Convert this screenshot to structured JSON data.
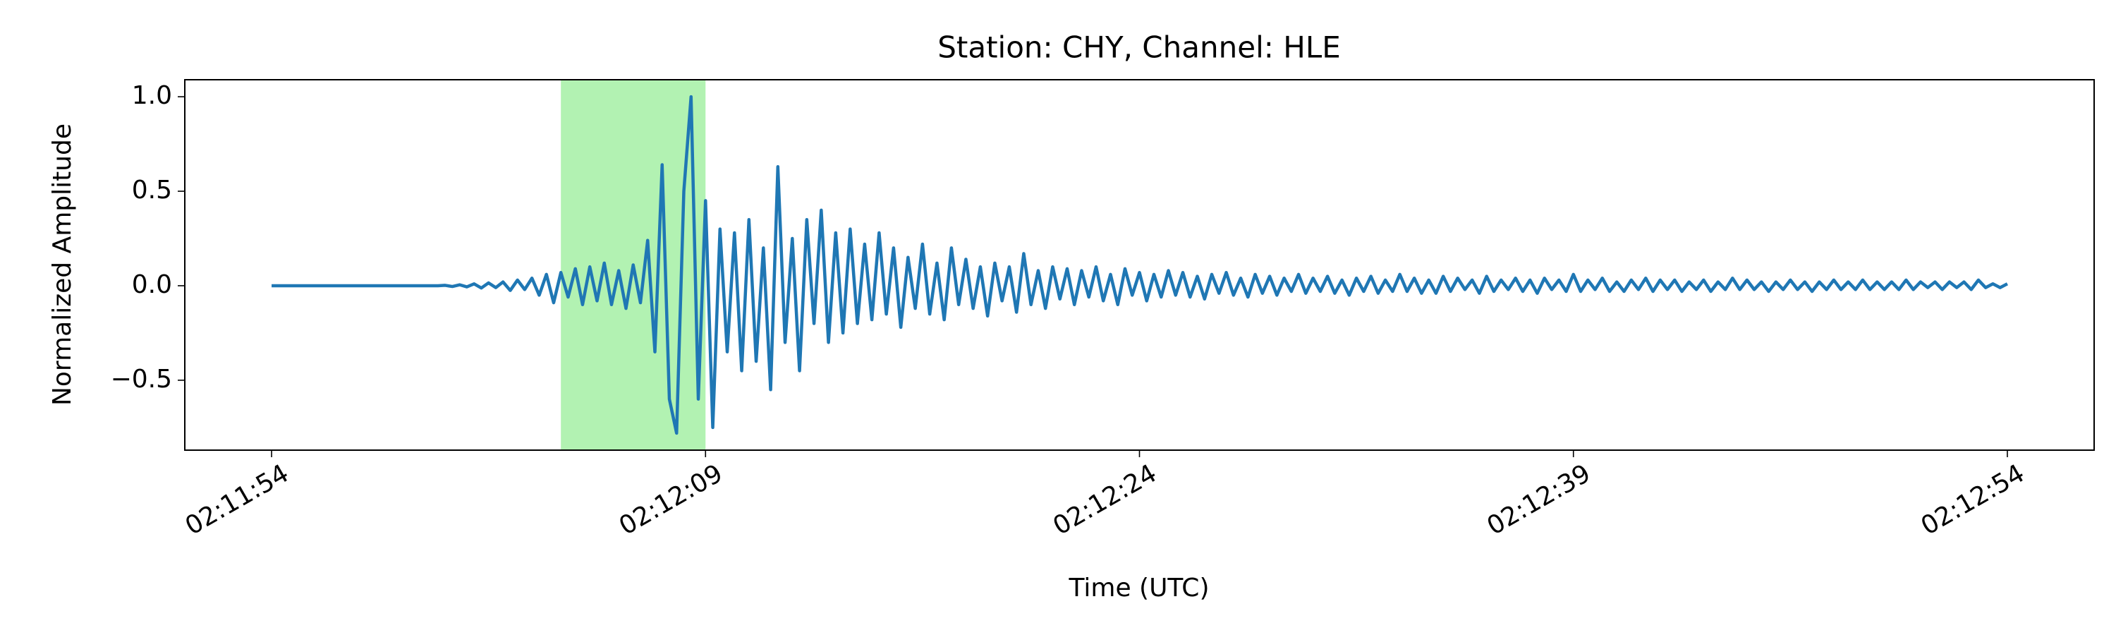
{
  "chart_data": {
    "type": "line",
    "title": "Station: CHY, Channel: HLE",
    "xlabel": "Time (UTC)",
    "ylabel": "Normalized Amplitude",
    "color": "#1f77b4",
    "grid": false,
    "highlight": [
      7924,
      7929
    ],
    "highlight_color": "#b2f2b2",
    "xlim": [
      7911,
      7977
    ],
    "ylim": [
      -0.87,
      1.09
    ],
    "xticks": [
      {
        "value": 7914,
        "label": "02:11:54"
      },
      {
        "value": 7929,
        "label": "02:12:09"
      },
      {
        "value": 7944,
        "label": "02:12:24"
      },
      {
        "value": 7959,
        "label": "02:12:39"
      },
      {
        "value": 7974,
        "label": "02:12:54"
      }
    ],
    "yticks": [
      {
        "value": -0.5,
        "label": "−0.5"
      },
      {
        "value": 0,
        "label": "0.0"
      },
      0.5,
      {
        "value": 1,
        "label": "1.0"
      }
    ],
    "x": [
      7914,
      7914.25,
      7914.5,
      7914.75,
      7915,
      7915.25,
      7915.5,
      7915.75,
      7916,
      7916.25,
      7916.5,
      7916.75,
      7917,
      7917.25,
      7917.5,
      7917.75,
      7918,
      7918.25,
      7918.5,
      7918.75,
      7919,
      7919.25,
      7919.5,
      7919.75,
      7920,
      7920.25,
      7920.5,
      7920.75,
      7921,
      7921.25,
      7921.5,
      7921.75,
      7922,
      7922.25,
      7922.5,
      7922.75,
      7923,
      7923.25,
      7923.5,
      7923.75,
      7924,
      7924.25,
      7924.5,
      7924.75,
      7925,
      7925.25,
      7925.5,
      7925.75,
      7926,
      7926.25,
      7926.5,
      7926.75,
      7927,
      7927.25,
      7927.5,
      7927.75,
      7928,
      7928.25,
      7928.5,
      7928.75,
      7929,
      7929.25,
      7929.5,
      7929.75,
      7930,
      7930.25,
      7930.5,
      7930.75,
      7931,
      7931.25,
      7931.5,
      7931.75,
      7932,
      7932.25,
      7932.5,
      7932.75,
      7933,
      7933.25,
      7933.5,
      7933.75,
      7934,
      7934.25,
      7934.5,
      7934.75,
      7935,
      7935.25,
      7935.5,
      7935.75,
      7936,
      7936.25,
      7936.5,
      7936.75,
      7937,
      7937.25,
      7937.5,
      7937.75,
      7938,
      7938.25,
      7938.5,
      7938.75,
      7939,
      7939.25,
      7939.5,
      7939.75,
      7940,
      7940.25,
      7940.5,
      7940.75,
      7941,
      7941.25,
      7941.5,
      7941.75,
      7942,
      7942.25,
      7942.5,
      7942.75,
      7943,
      7943.25,
      7943.5,
      7943.75,
      7944,
      7944.25,
      7944.5,
      7944.75,
      7945,
      7945.25,
      7945.5,
      7945.75,
      7946,
      7946.25,
      7946.5,
      7946.75,
      7947,
      7947.25,
      7947.5,
      7947.75,
      7948,
      7948.25,
      7948.5,
      7948.75,
      7949,
      7949.25,
      7949.5,
      7949.75,
      7950,
      7950.25,
      7950.5,
      7950.75,
      7951,
      7951.25,
      7951.5,
      7951.75,
      7952,
      7952.25,
      7952.5,
      7952.75,
      7953,
      7953.25,
      7953.5,
      7953.75,
      7954,
      7954.25,
      7954.5,
      7954.75,
      7955,
      7955.25,
      7955.5,
      7955.75,
      7956,
      7956.25,
      7956.5,
      7956.75,
      7957,
      7957.25,
      7957.5,
      7957.75,
      7958,
      7958.25,
      7958.5,
      7958.75,
      7959,
      7959.25,
      7959.5,
      7959.75,
      7960,
      7960.25,
      7960.5,
      7960.75,
      7961,
      7961.25,
      7961.5,
      7961.75,
      7962,
      7962.25,
      7962.5,
      7962.75,
      7963,
      7963.25,
      7963.5,
      7963.75,
      7964,
      7964.25,
      7964.5,
      7964.75,
      7965,
      7965.25,
      7965.5,
      7965.75,
      7966,
      7966.25,
      7966.5,
      7966.75,
      7967,
      7967.25,
      7967.5,
      7967.75,
      7968,
      7968.25,
      7968.5,
      7968.75,
      7969,
      7969.25,
      7969.5,
      7969.75,
      7970,
      7970.25,
      7970.5,
      7970.75,
      7971,
      7971.25,
      7971.5,
      7971.75,
      7972,
      7972.25,
      7972.5,
      7972.75,
      7973,
      7973.25,
      7973.5,
      7973.75,
      7974
    ],
    "values": [
      0,
      0,
      0,
      0,
      0,
      0,
      0,
      0,
      0,
      0,
      0,
      0,
      0,
      0,
      0,
      0,
      0,
      0,
      0,
      0,
      0,
      0,
      0,
      0,
      0.002,
      -0.004,
      0.005,
      -0.006,
      0.01,
      -0.012,
      0.015,
      -0.01,
      0.02,
      -0.025,
      0.03,
      -0.02,
      0.04,
      -0.05,
      0.06,
      -0.09,
      0.07,
      -0.06,
      0.09,
      -0.1,
      0.1,
      -0.08,
      0.12,
      -0.1,
      0.08,
      -0.12,
      0.11,
      -0.09,
      0.24,
      -0.35,
      0.64,
      -0.6,
      -0.78,
      0.5,
      1.0,
      -0.6,
      0.45,
      -0.75,
      0.3,
      -0.35,
      0.28,
      -0.45,
      0.35,
      -0.4,
      0.2,
      -0.55,
      0.63,
      -0.3,
      0.25,
      -0.45,
      0.35,
      -0.2,
      0.4,
      -0.3,
      0.28,
      -0.25,
      0.3,
      -0.2,
      0.22,
      -0.18,
      0.28,
      -0.15,
      0.2,
      -0.22,
      0.15,
      -0.12,
      0.22,
      -0.15,
      0.12,
      -0.18,
      0.2,
      -0.1,
      0.14,
      -0.12,
      0.1,
      -0.16,
      0.12,
      -0.08,
      0.1,
      -0.14,
      0.17,
      -0.1,
      0.08,
      -0.12,
      0.1,
      -0.07,
      0.09,
      -0.1,
      0.08,
      -0.06,
      0.1,
      -0.08,
      0.06,
      -0.1,
      0.09,
      -0.05,
      0.07,
      -0.08,
      0.06,
      -0.06,
      0.08,
      -0.05,
      0.07,
      -0.06,
      0.05,
      -0.07,
      0.06,
      -0.04,
      0.07,
      -0.05,
      0.04,
      -0.06,
      0.06,
      -0.04,
      0.05,
      -0.05,
      0.04,
      -0.03,
      0.06,
      -0.04,
      0.04,
      -0.03,
      0.05,
      -0.04,
      0.03,
      -0.05,
      0.04,
      -0.03,
      0.05,
      -0.04,
      0.03,
      -0.03,
      0.06,
      -0.03,
      0.04,
      -0.04,
      0.03,
      -0.04,
      0.05,
      -0.03,
      0.04,
      -0.02,
      0.03,
      -0.04,
      0.05,
      -0.03,
      0.03,
      -0.02,
      0.04,
      -0.03,
      0.03,
      -0.04,
      0.04,
      -0.02,
      0.03,
      -0.03,
      0.06,
      -0.03,
      0.03,
      -0.02,
      0.04,
      -0.03,
      0.02,
      -0.03,
      0.03,
      -0.02,
      0.04,
      -0.03,
      0.03,
      -0.02,
      0.03,
      -0.03,
      0.02,
      -0.02,
      0.03,
      -0.03,
      0.02,
      -0.02,
      0.04,
      -0.02,
      0.03,
      -0.02,
      0.02,
      -0.03,
      0.02,
      -0.02,
      0.03,
      -0.02,
      0.02,
      -0.03,
      0.02,
      -0.02,
      0.03,
      -0.02,
      0.02,
      -0.02,
      0.03,
      -0.02,
      0.02,
      -0.02,
      0.02,
      -0.02,
      0.03,
      -0.02,
      0.02,
      -0.01,
      0.02,
      -0.02,
      0.02,
      -0.01,
      0.02,
      -0.02,
      0.03,
      -0.01,
      0.01,
      -0.01,
      0.01
    ]
  }
}
